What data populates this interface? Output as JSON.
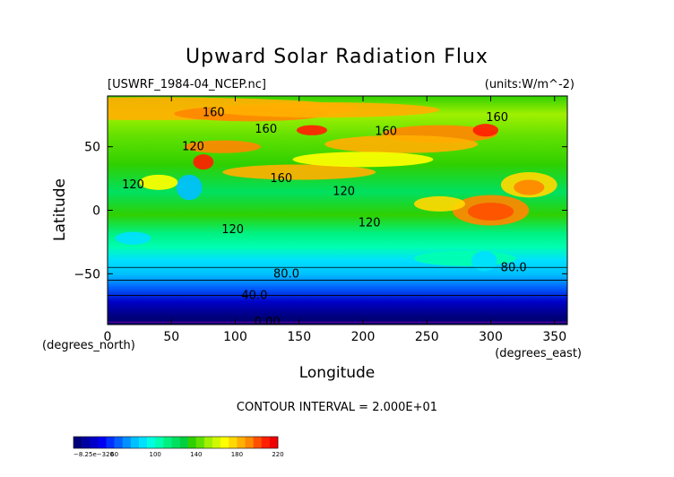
{
  "chart_data": {
    "type": "heatmap",
    "title": "Upward Solar Radiation Flux",
    "file_label": "[USWRF_1984-04_NCEP.nc]",
    "units_label": "(units:W/m^-2)",
    "xlabel": "Longitude",
    "ylabel": "Latitude",
    "x_unit_label": "(degrees_east)",
    "y_unit_label": "(degrees_north)",
    "xlim": [
      0,
      360
    ],
    "ylim": [
      -90,
      90
    ],
    "x_ticks": [
      "0",
      "50",
      "100",
      "150",
      "200",
      "250",
      "300",
      "350"
    ],
    "y_ticks": [
      "50",
      "0",
      "−50"
    ],
    "contour_interval_label": "CONTOUR INTERVAL = 2.000E+01",
    "contour_labels": [
      {
        "text": "160",
        "x": 83,
        "y": 77
      },
      {
        "text": "160",
        "x": 124,
        "y": 64
      },
      {
        "text": "160",
        "x": 218,
        "y": 62
      },
      {
        "text": "160",
        "x": 305,
        "y": 73
      },
      {
        "text": "120",
        "x": 67,
        "y": 50
      },
      {
        "text": "160",
        "x": 136,
        "y": 25
      },
      {
        "text": "120",
        "x": 20,
        "y": 20
      },
      {
        "text": "120",
        "x": 185,
        "y": 15
      },
      {
        "text": "120",
        "x": 205,
        "y": -10
      },
      {
        "text": "120",
        "x": 98,
        "y": -15
      },
      {
        "text": "80.0",
        "x": 140,
        "y": -50
      },
      {
        "text": "80.0",
        "x": 318,
        "y": -45
      },
      {
        "text": "40.0",
        "x": 115,
        "y": -67
      },
      {
        "text": "0.00",
        "x": 125,
        "y": -88
      }
    ],
    "colorbar": {
      "min_label": "−8.25e−320",
      "labels": [
        "60",
        "100",
        "140",
        "180",
        "220"
      ],
      "colors": [
        "#000078",
        "#0000a0",
        "#0000c8",
        "#0000f0",
        "#0030ff",
        "#0060ff",
        "#0090ff",
        "#00c0ff",
        "#00e0ff",
        "#00ffe0",
        "#00ffb0",
        "#00f080",
        "#00e060",
        "#00d040",
        "#30d000",
        "#60e000",
        "#a0f000",
        "#d0f800",
        "#ffff00",
        "#ffd800",
        "#ffb000",
        "#ff8800",
        "#ff5000",
        "#ff2000",
        "#f00000"
      ]
    }
  }
}
